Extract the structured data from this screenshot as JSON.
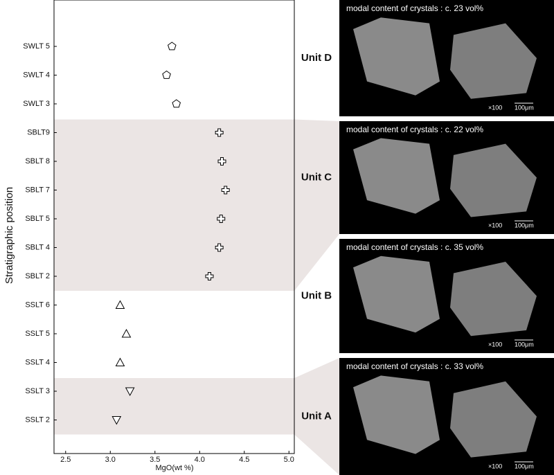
{
  "chart_data": {
    "type": "scatter",
    "xlabel": "MgO(wt %)",
    "ylabel": "Stratigraphic position",
    "xlim": [
      2.37,
      5.06
    ],
    "xticks": [
      2.5,
      {
        "value": 3.0,
        "label": "3.0"
      },
      3.5,
      {
        "value": 4.0,
        "label": "4.0"
      },
      4.5,
      {
        "value": 5.0,
        "label": "5.0"
      }
    ],
    "categories": [
      "SWLT 5",
      "SWLT 4",
      "SWLT 3",
      "SBLT9",
      "SBLT 8",
      "SBLT 7",
      "SBLT 5",
      "SBLT 4",
      "SBLT 2",
      "SSLT 6",
      "SSLT 5",
      "SSLT 4",
      "SSLT 3",
      "SSLT 2"
    ],
    "series": [
      {
        "unit": "Unit D",
        "marker": "pentagon",
        "shaded": false,
        "values": [
          3.69,
          3.63,
          3.74,
          null,
          null,
          null,
          null,
          null,
          null,
          null,
          null,
          null,
          null,
          null
        ],
        "caption": "modal content of crystals : c. 23 vol%",
        "magnification": "×100",
        "scale": "100μm"
      },
      {
        "unit": "Unit C",
        "marker": "cross",
        "shaded": true,
        "values": [
          null,
          null,
          null,
          4.22,
          4.25,
          4.29,
          4.24,
          4.22,
          4.11,
          null,
          null,
          null,
          null,
          null
        ],
        "caption": "modal content of crystals : c. 22 vol%",
        "magnification": "×100",
        "scale": "100μm"
      },
      {
        "unit": "Unit B",
        "marker": "triangle-up",
        "shaded": false,
        "values": [
          null,
          null,
          null,
          null,
          null,
          null,
          null,
          null,
          null,
          3.11,
          3.18,
          3.11,
          null,
          null
        ],
        "caption": "modal content of crystals : c. 35 vol%",
        "magnification": "×100",
        "scale": "100μm"
      },
      {
        "unit": "Unit A",
        "marker": "triangle-down",
        "shaded": true,
        "values": [
          null,
          null,
          null,
          null,
          null,
          null,
          null,
          null,
          null,
          null,
          null,
          null,
          3.22,
          3.07
        ],
        "caption": "modal content of crystals : c. 33 vol%",
        "magnification": "×100",
        "scale": "100μm"
      }
    ]
  }
}
